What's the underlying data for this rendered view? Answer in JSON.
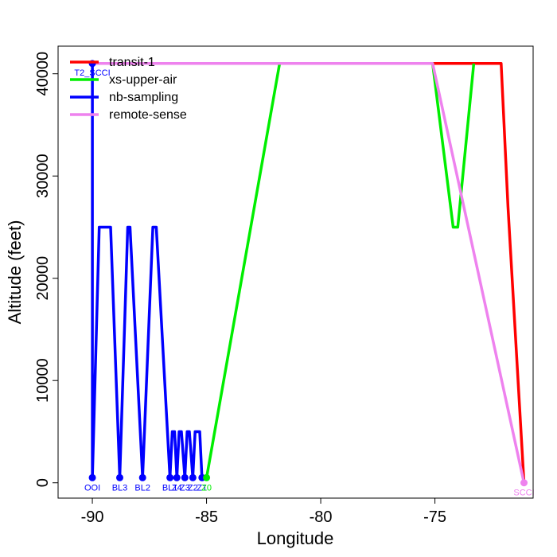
{
  "chart_data": {
    "type": "line",
    "title": "",
    "xlabel": "Longitude",
    "ylabel": "Altitude (feet)",
    "xlim": [
      -91.5,
      -70.7
    ],
    "ylim": [
      -1500,
      42700
    ],
    "x_ticks": [
      -90,
      -85,
      -80,
      -75
    ],
    "x_tick_labels": [
      "-90",
      "-85",
      "-80",
      "-75"
    ],
    "y_ticks": [
      0,
      10000,
      20000,
      30000,
      40000
    ],
    "y_tick_labels": [
      "0",
      "10000",
      "20000",
      "30000",
      "40000"
    ],
    "legend": {
      "placement": "top-left"
    },
    "grid": false,
    "series": [
      {
        "name": "transit-1",
        "color": "#ff0000",
        "points": [
          [
            -90,
            41000
          ],
          [
            -73.3,
            41000
          ],
          [
            -72.1,
            41000
          ],
          [
            -71.8,
            27000
          ],
          [
            -71.1,
            0
          ]
        ]
      },
      {
        "name": "xs-upper-air",
        "color": "#00ee00",
        "points": [
          [
            -85,
            500
          ],
          [
            -81.8,
            41000
          ],
          [
            -75.1,
            41000
          ],
          [
            -74.2,
            25000
          ],
          [
            -74.0,
            25000
          ],
          [
            -73.3,
            41000
          ]
        ]
      },
      {
        "name": "nb-sampling",
        "color": "#0000ff",
        "points": [
          [
            -90,
            41000
          ],
          [
            -90,
            500
          ],
          [
            -89.7,
            25000
          ],
          [
            -89.2,
            25000
          ],
          [
            -88.8,
            500
          ],
          [
            -88.45,
            25000
          ],
          [
            -88.35,
            25000
          ],
          [
            -87.8,
            500
          ],
          [
            -87.35,
            25000
          ],
          [
            -87.2,
            25000
          ],
          [
            -86.6,
            500
          ],
          [
            -86.5,
            5000
          ],
          [
            -86.4,
            5000
          ],
          [
            -86.3,
            500
          ],
          [
            -86.2,
            5000
          ],
          [
            -86.1,
            5000
          ],
          [
            -85.95,
            500
          ],
          [
            -85.85,
            5000
          ],
          [
            -85.75,
            5000
          ],
          [
            -85.6,
            500
          ],
          [
            -85.5,
            5000
          ],
          [
            -85.3,
            5000
          ],
          [
            -85.2,
            500
          ],
          [
            -85.0,
            500
          ]
        ]
      },
      {
        "name": "remote-sense",
        "color": "#ee82ee",
        "points": [
          [
            -90,
            41000
          ],
          [
            -75.1,
            41000
          ],
          [
            -71.1,
            0
          ]
        ]
      }
    ],
    "waypoints": [
      {
        "label": "T2_SCCI",
        "x": -90,
        "y": 41000,
        "color": "#0000ff"
      },
      {
        "label": "OOI",
        "x": -90,
        "y": 500,
        "color": "#0000ff"
      },
      {
        "label": "BL3",
        "x": -88.8,
        "y": 500,
        "color": "#0000ff"
      },
      {
        "label": "BL2",
        "x": -87.8,
        "y": 500,
        "color": "#0000ff"
      },
      {
        "label": "BL1",
        "x": -86.6,
        "y": 500,
        "color": "#0000ff"
      },
      {
        "label": "Z4",
        "x": -86.3,
        "y": 500,
        "color": "#0000ff"
      },
      {
        "label": "Z3",
        "x": -85.95,
        "y": 500,
        "color": "#0000ff"
      },
      {
        "label": "Z2",
        "x": -85.6,
        "y": 500,
        "color": "#0000ff"
      },
      {
        "label": "Z1",
        "x": -85.2,
        "y": 500,
        "color": "#0000ff"
      },
      {
        "label": "Z0",
        "x": -85.0,
        "y": 500,
        "color": "#00ee00"
      },
      {
        "label": "SCCI",
        "x": -71.1,
        "y": 0,
        "color": "#ee82ee"
      }
    ]
  }
}
